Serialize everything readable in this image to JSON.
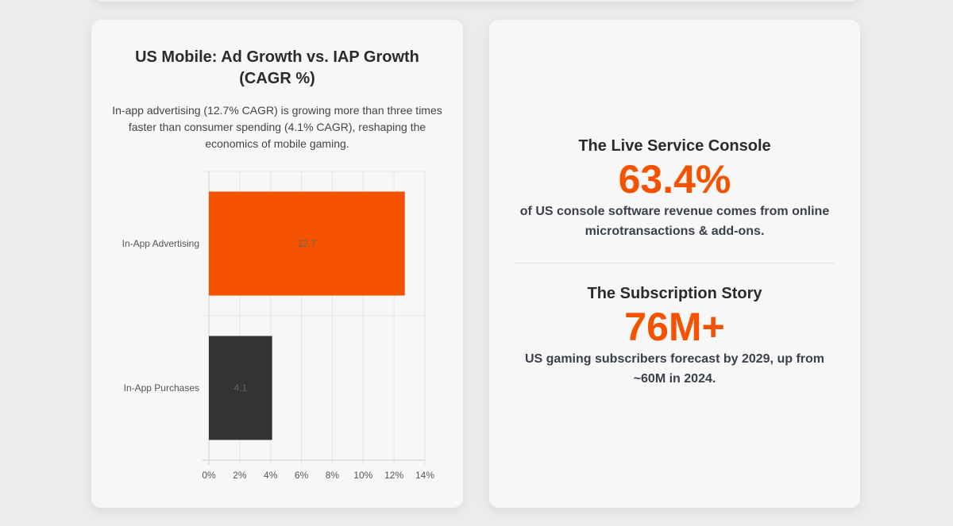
{
  "left_card": {
    "title": "US Mobile: Ad Growth vs. IAP Growth (CAGR %)",
    "subtitle": "In-app advertising (12.7% CAGR) is growing more than three times faster than consumer spending (4.1% CAGR), reshaping the economics of mobile gaming."
  },
  "chart_data": {
    "type": "bar",
    "orientation": "horizontal",
    "title": "US Mobile: Ad Growth vs. IAP Growth (CAGR %)",
    "categories": [
      "In-App Advertising",
      "In-App Purchases"
    ],
    "values": [
      12.7,
      4.1
    ],
    "value_labels": [
      "12.7",
      "4.1"
    ],
    "colors": [
      "#f55200",
      "#333333"
    ],
    "xlim": [
      0,
      14
    ],
    "xticks": [
      "0%",
      "2%",
      "4%",
      "6%",
      "8%",
      "10%",
      "12%",
      "14%"
    ],
    "grid": true,
    "xlabel": "",
    "ylabel": ""
  },
  "right_card": {
    "stat1": {
      "heading": "The Live Service Console",
      "value": "63.4%",
      "description": "of US console software revenue comes from online microtransactions & add-ons."
    },
    "stat2": {
      "heading": "The Subscription Story",
      "value": "76M+",
      "description": "US gaming subscribers forecast by 2029, up from ~60M in 2024."
    }
  }
}
